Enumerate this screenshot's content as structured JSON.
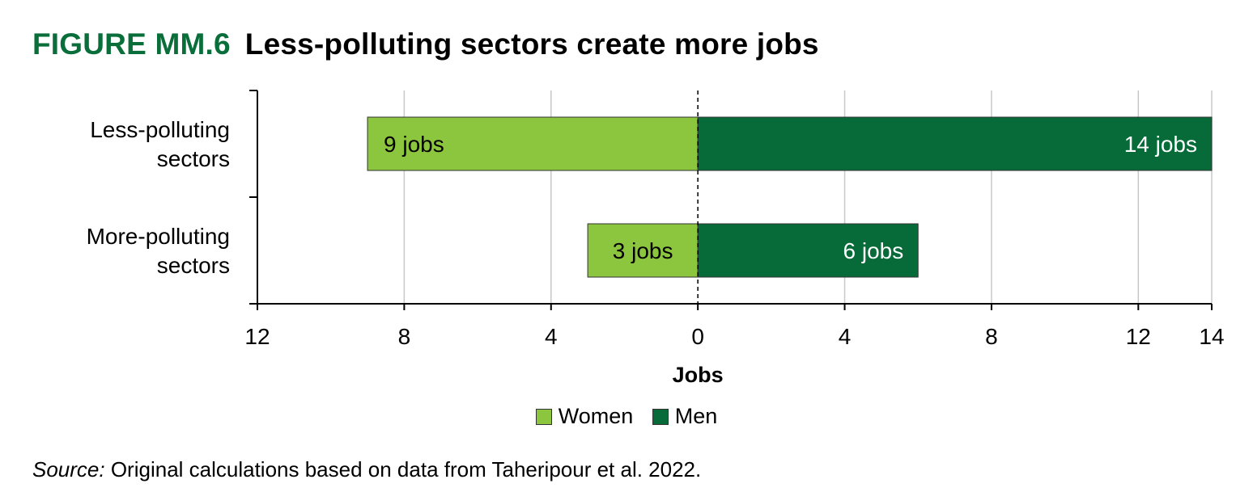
{
  "figure_label": "FIGURE MM.6",
  "title": "Less-polluting sectors create more jobs",
  "colors": {
    "women": "#8cc63f",
    "men": "#066b38",
    "accent": "#0a6e3a"
  },
  "chart_data": {
    "type": "bar",
    "orientation": "horizontal-diverging",
    "categories": [
      "Less-polluting sectors",
      "More-polluting sectors"
    ],
    "category_lines": [
      [
        "Less-polluting",
        "sectors"
      ],
      [
        "More-polluting",
        "sectors"
      ]
    ],
    "series": [
      {
        "name": "Women",
        "direction": "left",
        "values": [
          9,
          3
        ],
        "labels": [
          "9 jobs",
          "3 jobs"
        ]
      },
      {
        "name": "Men",
        "direction": "right",
        "values": [
          14,
          6
        ],
        "labels": [
          "14 jobs",
          "6 jobs"
        ]
      }
    ],
    "xlabel": "Jobs",
    "xlim": [
      -12,
      14
    ],
    "x_ticks": [
      -12,
      -8,
      -4,
      0,
      4,
      8,
      12,
      14
    ],
    "x_tick_labels": [
      "12",
      "8",
      "4",
      "0",
      "4",
      "8",
      "12",
      "14"
    ],
    "grid": true,
    "zero_line": "dashed",
    "legend_position": "bottom"
  },
  "legend": {
    "women": "Women",
    "men": "Men"
  },
  "source": {
    "lead": "Source:",
    "text": " Original calculations based on data from Taheripour et al. 2022."
  }
}
